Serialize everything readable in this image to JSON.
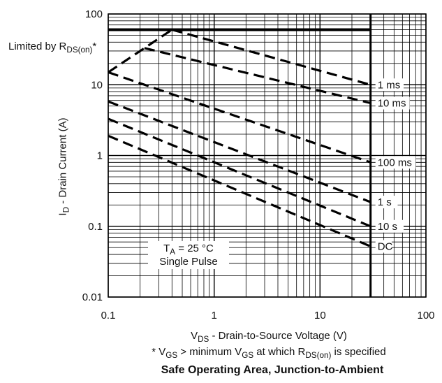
{
  "chart_data": {
    "type": "line",
    "title": "Safe Operating Area, Junction-to-Ambient",
    "xlabel": {
      "main": "V",
      "sub": "DS",
      "rest": " - Drain-to-Source Voltage (V)"
    },
    "ylabel": {
      "main": "I",
      "sub": "D",
      "rest": " - Drain Current (A)"
    },
    "footnote": {
      "a": "* V",
      "a_sub": "GS",
      "b": " > minimum V",
      "b_sub": "GS",
      "c": " at which R",
      "c_sub": "DS(on)",
      "d": " is specified"
    },
    "xscale": "log",
    "yscale": "log",
    "xlim": [
      0.1,
      100
    ],
    "ylim": [
      0.01,
      100
    ],
    "xticks": [
      {
        "value": 0.1,
        "label": "0.1"
      },
      {
        "value": 1,
        "label": "1"
      },
      {
        "value": 10,
        "label": "10"
      },
      {
        "value": 100,
        "label": "100"
      }
    ],
    "yticks": [
      {
        "value": 0.01,
        "label": "0.01"
      },
      {
        "value": 0.1,
        "label": "0.1"
      },
      {
        "value": 1,
        "label": "1"
      },
      {
        "value": 10,
        "label": "10"
      },
      {
        "value": 100,
        "label": "100"
      }
    ],
    "grid": "minor log grid on both axes",
    "limits": {
      "max_current": 60,
      "max_voltage": 30
    },
    "limit_note": {
      "main": "Limited by R",
      "sub": "DS(on)",
      "rest": "*"
    },
    "series": [
      {
        "name": "1 ms",
        "x": [
          0.4,
          30
        ],
        "y": [
          60,
          10
        ]
      },
      {
        "name": "10 ms",
        "x": [
          0.22,
          30
        ],
        "y": [
          33,
          5.5
        ]
      },
      {
        "name": "100 ms",
        "x": [
          0.1,
          30
        ],
        "y": [
          15,
          0.8
        ]
      },
      {
        "name": "1 s",
        "x": [
          0.1,
          30
        ],
        "y": [
          5.8,
          0.22
        ]
      },
      {
        "name": "10 s",
        "x": [
          0.1,
          30
        ],
        "y": [
          3.3,
          0.1
        ]
      },
      {
        "name": "DC",
        "x": [
          0.1,
          30
        ],
        "y": [
          1.9,
          0.052
        ]
      }
    ],
    "annotation": {
      "line1_main": "T",
      "line1_sub": "A",
      "line1_rest": " = 25 °C",
      "line2": "Single Pulse"
    }
  }
}
